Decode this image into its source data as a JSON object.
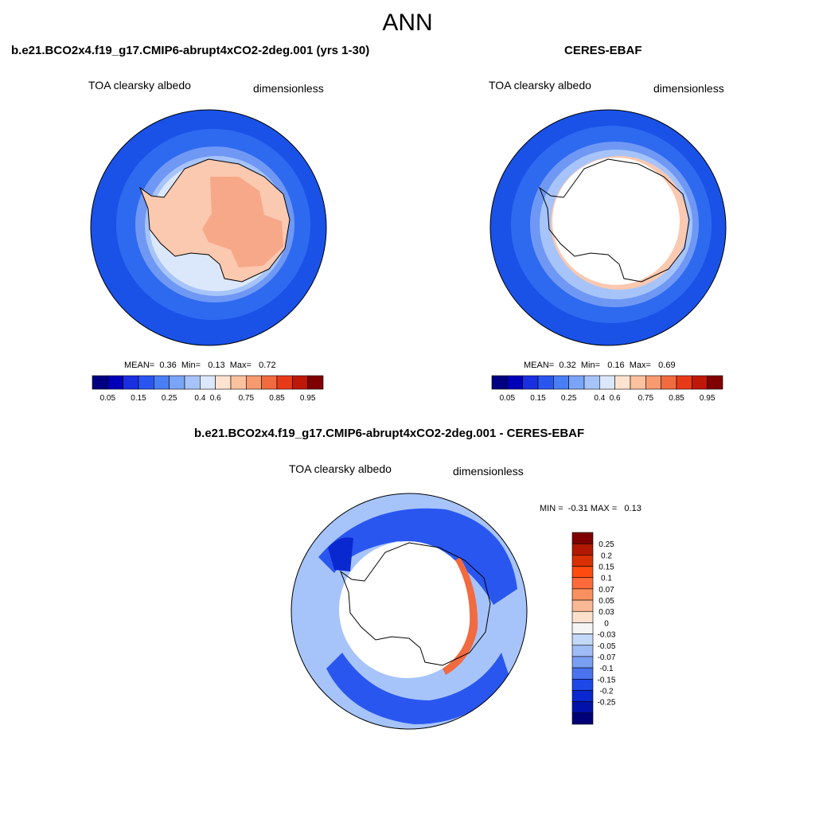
{
  "figure": {
    "title": "ANN"
  },
  "panels": [
    {
      "title": "b.e21.BCO2x4.f19_g17.CMIP6-abrupt4xCO2-2deg.001 (yrs 1-30)",
      "variable": "TOA clearsky albedo",
      "units": "dimensionless",
      "stats": {
        "mean_label": "MEAN=",
        "mean": "0.36",
        "min_label": "Min=",
        "min": "0.13",
        "max_label": "Max=",
        "max": "0.72"
      }
    },
    {
      "title": "CERES-EBAF",
      "variable": "TOA clearsky albedo",
      "units": "dimensionless",
      "stats": {
        "mean_label": "MEAN=",
        "mean": "0.32",
        "min_label": "Min=",
        "min": "0.16",
        "max_label": "Max=",
        "max": "0.69"
      }
    },
    {
      "title": "b.e21.BCO2x4.f19_g17.CMIP6-abrupt4xCO2-2deg.001 - CERES-EBAF",
      "variable": "TOA clearsky albedo",
      "units": "dimensionless",
      "stats": {
        "min_label": "MIN =",
        "min": "-0.31",
        "max_label": "MAX =",
        "max": "0.13"
      }
    }
  ],
  "colorbars": {
    "albedo": {
      "colors": [
        "#000080",
        "#0000b8",
        "#1a2fe0",
        "#2a56f0",
        "#4a7ef5",
        "#7aa4f7",
        "#a6c4fa",
        "#dbe8fc",
        "#fde3d0",
        "#fbc2a0",
        "#f79a70",
        "#f26a40",
        "#e83a18",
        "#c01808",
        "#800000"
      ],
      "tick_labels": [
        "0.05",
        "0.15",
        "0.25",
        "0.4",
        "0.6",
        "0.75",
        "0.85",
        "0.95"
      ]
    },
    "difference": {
      "colors": [
        "#800000",
        "#b01800",
        "#d83000",
        "#ff4a10",
        "#ff6a3a",
        "#fa9060",
        "#fbb894",
        "#fde0cc",
        "#f4f4f4",
        "#c4d8fa",
        "#a0bcf6",
        "#7a9ef2",
        "#4a74ee",
        "#1e48e8",
        "#0a28d0",
        "#0012a8",
        "#000078"
      ],
      "tick_labels": [
        "0.25",
        "0.2",
        "0.15",
        "0.1",
        "0.07",
        "0.05",
        "0.03",
        "0",
        "-0.03",
        "-0.05",
        "-0.07",
        "-0.1",
        "-0.15",
        "-0.2",
        "-0.25"
      ]
    }
  },
  "map_colors": {
    "ocean_deep": "#1a52e8",
    "ocean_mid": "#2e6af0",
    "ocean_light": "#6f98f4",
    "sea_ice": "#a6c4fa",
    "ice_edge": "#dbe8fc",
    "land_low": "#fbc8b0",
    "land_high": "#f7a888",
    "diff_neg_strong": "#0a28d0",
    "diff_neg_mid": "#2a56f0",
    "diff_neg_light": "#a6c4fa",
    "diff_pos": "#f26a40",
    "missing": "#ffffff"
  }
}
